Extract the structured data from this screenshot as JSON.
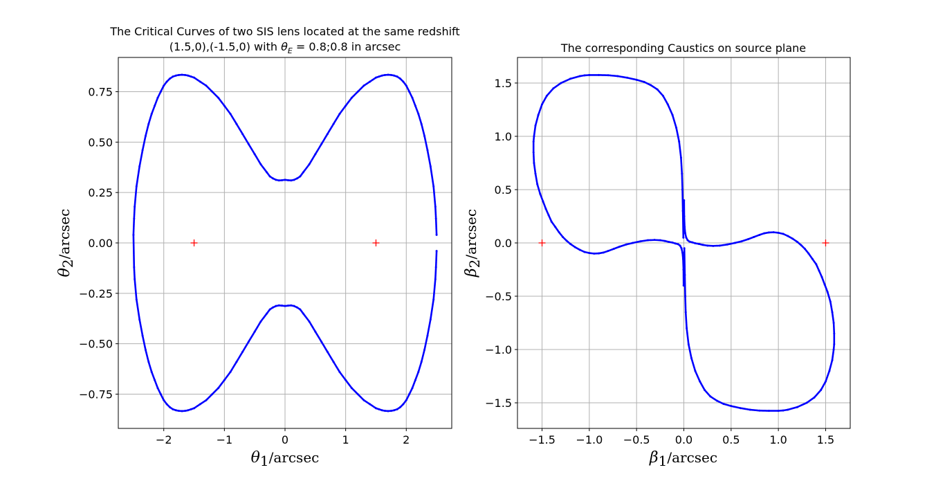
{
  "chart_data": [
    {
      "type": "scatter",
      "title_line1": "The Critical Curves of two SIS lens located at the same redshift",
      "title_line2_pre": "(1.5,0),(-1.5,0) with ",
      "title_line2_sym": "θ",
      "title_line2_sub": "E",
      "title_line2_post": " = 0.8;0.8 in arcsec",
      "xlabel_sym": "θ",
      "xlabel_sub": "1",
      "xlabel_unit": "/arcsec",
      "ylabel_sym": "θ",
      "ylabel_sub": "2",
      "ylabel_unit": "/arcsec",
      "xlim": [
        -2.75,
        2.75
      ],
      "ylim": [
        -0.92,
        0.92
      ],
      "xticks": [
        -2,
        -1,
        0,
        1,
        2
      ],
      "xtick_labels": [
        "−2",
        "−1",
        "0",
        "1",
        "2"
      ],
      "yticks": [
        -0.75,
        -0.5,
        -0.25,
        0.0,
        0.25,
        0.5,
        0.75
      ],
      "ytick_labels": [
        "−0.75",
        "−0.50",
        "−0.25",
        "0.00",
        "0.25",
        "0.50",
        "0.75"
      ],
      "grid": true,
      "series": [
        {
          "role": "critical-curve",
          "color": "#0000ff",
          "x": [
            2.5,
            2.49,
            2.48,
            2.45,
            2.4,
            2.35,
            2.3,
            2.25,
            2.2,
            2.15,
            2.1,
            2.05,
            2.0,
            1.95,
            1.9,
            1.85,
            1.8,
            1.75,
            1.7,
            1.65,
            1.6,
            1.55,
            1.5,
            1.4,
            1.3,
            1.2,
            1.1,
            1.0,
            0.9,
            0.8,
            0.7,
            0.6,
            0.5,
            0.4,
            0.3,
            0.25,
            0.2,
            0.15,
            0.1,
            0.05,
            0.0,
            -0.05,
            -0.1,
            -0.15,
            -0.2,
            -0.25,
            -0.3,
            -0.4,
            -0.5,
            -0.6,
            -0.7,
            -0.8,
            -0.9,
            -1.0,
            -1.1,
            -1.2,
            -1.3,
            -1.4,
            -1.5,
            -1.55,
            -1.6,
            -1.65,
            -1.7,
            -1.75,
            -1.8,
            -1.85,
            -1.9,
            -1.95,
            -2.0,
            -2.05,
            -2.1,
            -2.15,
            -2.2,
            -2.25,
            -2.3,
            -2.35,
            -2.4,
            -2.45,
            -2.48,
            -2.49,
            -2.5,
            -2.49,
            -2.48,
            -2.45,
            -2.4,
            -2.35,
            -2.3,
            -2.25,
            -2.2,
            -2.15,
            -2.1,
            -2.05,
            -2.0,
            -1.95,
            -1.9,
            -1.85,
            -1.8,
            -1.75,
            -1.7,
            -1.65,
            -1.6,
            -1.55,
            -1.5,
            -1.4,
            -1.3,
            -1.2,
            -1.1,
            -1.0,
            -0.9,
            -0.8,
            -0.7,
            -0.6,
            -0.5,
            -0.4,
            -0.3,
            -0.25,
            -0.2,
            -0.15,
            -0.1,
            -0.05,
            0.0,
            0.05,
            0.1,
            0.15,
            0.2,
            0.25,
            0.3,
            0.4,
            0.5,
            0.6,
            0.7,
            0.8,
            0.9,
            1.0,
            1.1,
            1.2,
            1.3,
            1.4,
            1.5,
            1.55,
            1.6,
            1.65,
            1.7,
            1.75,
            1.8,
            1.85,
            1.9,
            1.95,
            2.0,
            2.05,
            2.1,
            2.15,
            2.2,
            2.25,
            2.3,
            2.35,
            2.4,
            2.45,
            2.48,
            2.49,
            2.5
          ],
          "y": [
            0.04,
            0.12,
            0.18,
            0.28,
            0.38,
            0.46,
            0.53,
            0.59,
            0.64,
            0.68,
            0.72,
            0.75,
            0.78,
            0.8,
            0.815,
            0.825,
            0.83,
            0.833,
            0.834,
            0.833,
            0.83,
            0.825,
            0.82,
            0.8,
            0.78,
            0.75,
            0.72,
            0.68,
            0.64,
            0.59,
            0.54,
            0.49,
            0.44,
            0.39,
            0.35,
            0.33,
            0.32,
            0.313,
            0.31,
            0.311,
            0.313,
            0.311,
            0.31,
            0.313,
            0.32,
            0.33,
            0.35,
            0.39,
            0.44,
            0.49,
            0.54,
            0.59,
            0.64,
            0.68,
            0.72,
            0.75,
            0.78,
            0.8,
            0.82,
            0.825,
            0.83,
            0.833,
            0.834,
            0.833,
            0.83,
            0.825,
            0.815,
            0.8,
            0.78,
            0.75,
            0.72,
            0.68,
            0.64,
            0.59,
            0.53,
            0.46,
            0.38,
            0.28,
            0.18,
            0.12,
            0.04,
            -0.12,
            -0.18,
            -0.28,
            -0.38,
            -0.46,
            -0.53,
            -0.59,
            -0.64,
            -0.68,
            -0.72,
            -0.75,
            -0.78,
            -0.8,
            -0.815,
            -0.825,
            -0.83,
            -0.833,
            -0.834,
            -0.833,
            -0.83,
            -0.825,
            -0.82,
            -0.8,
            -0.78,
            -0.75,
            -0.72,
            -0.68,
            -0.64,
            -0.59,
            -0.54,
            -0.49,
            -0.44,
            -0.39,
            -0.35,
            -0.33,
            -0.32,
            -0.313,
            -0.31,
            -0.311,
            -0.313,
            -0.311,
            -0.31,
            -0.313,
            -0.32,
            -0.33,
            -0.35,
            -0.39,
            -0.44,
            -0.49,
            -0.54,
            -0.59,
            -0.64,
            -0.68,
            -0.72,
            -0.75,
            -0.78,
            -0.8,
            -0.82,
            -0.825,
            -0.83,
            -0.833,
            -0.834,
            -0.833,
            -0.83,
            -0.825,
            -0.815,
            -0.8,
            -0.78,
            -0.75,
            -0.72,
            -0.68,
            -0.64,
            -0.59,
            -0.53,
            -0.46,
            -0.38,
            -0.28,
            -0.18,
            -0.12,
            -0.04
          ]
        },
        {
          "role": "lens-positions",
          "color": "#ff0000",
          "marker": "+",
          "x": [
            1.5,
            -1.5
          ],
          "y": [
            0.0,
            0.0
          ]
        }
      ]
    },
    {
      "type": "scatter",
      "title": "The corresponding Caustics on source plane",
      "xlabel_sym": "β",
      "xlabel_sub": "1",
      "xlabel_unit": "/arcsec",
      "ylabel_sym": "β",
      "ylabel_sub": "2",
      "ylabel_unit": "/arcsec",
      "xlim": [
        -1.76,
        1.76
      ],
      "ylim": [
        -1.74,
        1.74
      ],
      "xticks": [
        -1.5,
        -1.0,
        -0.5,
        0.0,
        0.5,
        1.0,
        1.5
      ],
      "xtick_labels": [
        "−1.5",
        "−1.0",
        "−0.5",
        "0.0",
        "0.5",
        "1.0",
        "1.5"
      ],
      "yticks": [
        -1.5,
        -1.0,
        -0.5,
        0.0,
        0.5,
        1.0,
        1.5
      ],
      "ytick_labels": [
        "−1.5",
        "−1.0",
        "−0.5",
        "0.0",
        "0.5",
        "1.0",
        "1.5"
      ],
      "grid": true,
      "series": [
        {
          "role": "caustic-upper-left",
          "color": "#0000ff",
          "x": [
            -0.005,
            -0.01,
            -0.015,
            -0.02,
            -0.03,
            -0.05,
            -0.08,
            -0.12,
            -0.17,
            -0.22,
            -0.28,
            -0.35,
            -0.42,
            -0.5,
            -0.6,
            -0.7,
            -0.8,
            -0.9,
            -1.0,
            -1.05,
            -1.1,
            -1.2,
            -1.3,
            -1.38,
            -1.45,
            -1.5,
            -1.54,
            -1.57,
            -1.585,
            -1.59,
            -1.59,
            -1.585,
            -1.57,
            -1.55,
            -1.52,
            -1.49,
            -1.46,
            -1.43,
            -1.4,
            -1.36,
            -1.32,
            -1.28,
            -1.24,
            -1.2,
            -1.15,
            -1.1,
            -1.05,
            -1.0,
            -0.95,
            -0.9,
            -0.85,
            -0.8,
            -0.74,
            -0.68,
            -0.61,
            -0.54,
            -0.46,
            -0.38,
            -0.31,
            -0.25,
            -0.2,
            -0.16,
            -0.12,
            -0.09,
            -0.06,
            -0.04,
            -0.025,
            -0.015,
            -0.008,
            -0.004,
            -0.002
          ],
          "y": [
            0.05,
            0.3,
            0.5,
            0.65,
            0.8,
            0.95,
            1.08,
            1.2,
            1.3,
            1.38,
            1.44,
            1.48,
            1.51,
            1.53,
            1.55,
            1.565,
            1.573,
            1.575,
            1.575,
            1.572,
            1.565,
            1.54,
            1.5,
            1.45,
            1.38,
            1.3,
            1.2,
            1.1,
            1.0,
            0.95,
            0.85,
            0.75,
            0.65,
            0.55,
            0.46,
            0.39,
            0.32,
            0.26,
            0.2,
            0.15,
            0.1,
            0.055,
            0.02,
            -0.01,
            -0.04,
            -0.065,
            -0.085,
            -0.095,
            -0.1,
            -0.098,
            -0.09,
            -0.075,
            -0.055,
            -0.035,
            -0.015,
            0.0,
            0.015,
            0.025,
            0.028,
            0.025,
            0.018,
            0.01,
            0.003,
            -0.005,
            -0.012,
            -0.025,
            -0.05,
            -0.09,
            -0.15,
            -0.25,
            -0.4
          ]
        },
        {
          "role": "caustic-lower-right",
          "color": "#0000ff",
          "x": [
            0.005,
            0.01,
            0.015,
            0.02,
            0.03,
            0.05,
            0.08,
            0.12,
            0.17,
            0.22,
            0.28,
            0.35,
            0.42,
            0.5,
            0.6,
            0.7,
            0.8,
            0.9,
            1.0,
            1.05,
            1.1,
            1.2,
            1.3,
            1.38,
            1.45,
            1.5,
            1.54,
            1.57,
            1.585,
            1.59,
            1.59,
            1.585,
            1.57,
            1.55,
            1.52,
            1.49,
            1.46,
            1.43,
            1.4,
            1.36,
            1.32,
            1.28,
            1.24,
            1.2,
            1.15,
            1.1,
            1.05,
            1.0,
            0.95,
            0.9,
            0.85,
            0.8,
            0.74,
            0.68,
            0.61,
            0.54,
            0.46,
            0.38,
            0.31,
            0.25,
            0.2,
            0.16,
            0.12,
            0.09,
            0.06,
            0.04,
            0.025,
            0.015,
            0.008,
            0.004,
            0.002
          ],
          "y": [
            -0.05,
            -0.3,
            -0.5,
            -0.65,
            -0.8,
            -0.95,
            -1.08,
            -1.2,
            -1.3,
            -1.38,
            -1.44,
            -1.48,
            -1.51,
            -1.53,
            -1.55,
            -1.565,
            -1.573,
            -1.575,
            -1.575,
            -1.572,
            -1.565,
            -1.54,
            -1.5,
            -1.45,
            -1.38,
            -1.3,
            -1.2,
            -1.1,
            -1.0,
            -0.95,
            -0.85,
            -0.75,
            -0.65,
            -0.55,
            -0.46,
            -0.39,
            -0.32,
            -0.26,
            -0.2,
            -0.15,
            -0.1,
            -0.055,
            -0.02,
            0.01,
            0.04,
            0.065,
            0.085,
            0.095,
            0.1,
            0.098,
            0.09,
            0.075,
            0.055,
            0.035,
            0.015,
            0.0,
            -0.015,
            -0.025,
            -0.028,
            -0.025,
            -0.018,
            -0.01,
            -0.003,
            0.005,
            0.012,
            0.025,
            0.05,
            0.09,
            0.15,
            0.25,
            0.4
          ]
        },
        {
          "role": "source-positions",
          "color": "#ff0000",
          "marker": "+",
          "x": [
            -1.5,
            1.5
          ],
          "y": [
            0.0,
            0.0
          ]
        }
      ]
    }
  ]
}
